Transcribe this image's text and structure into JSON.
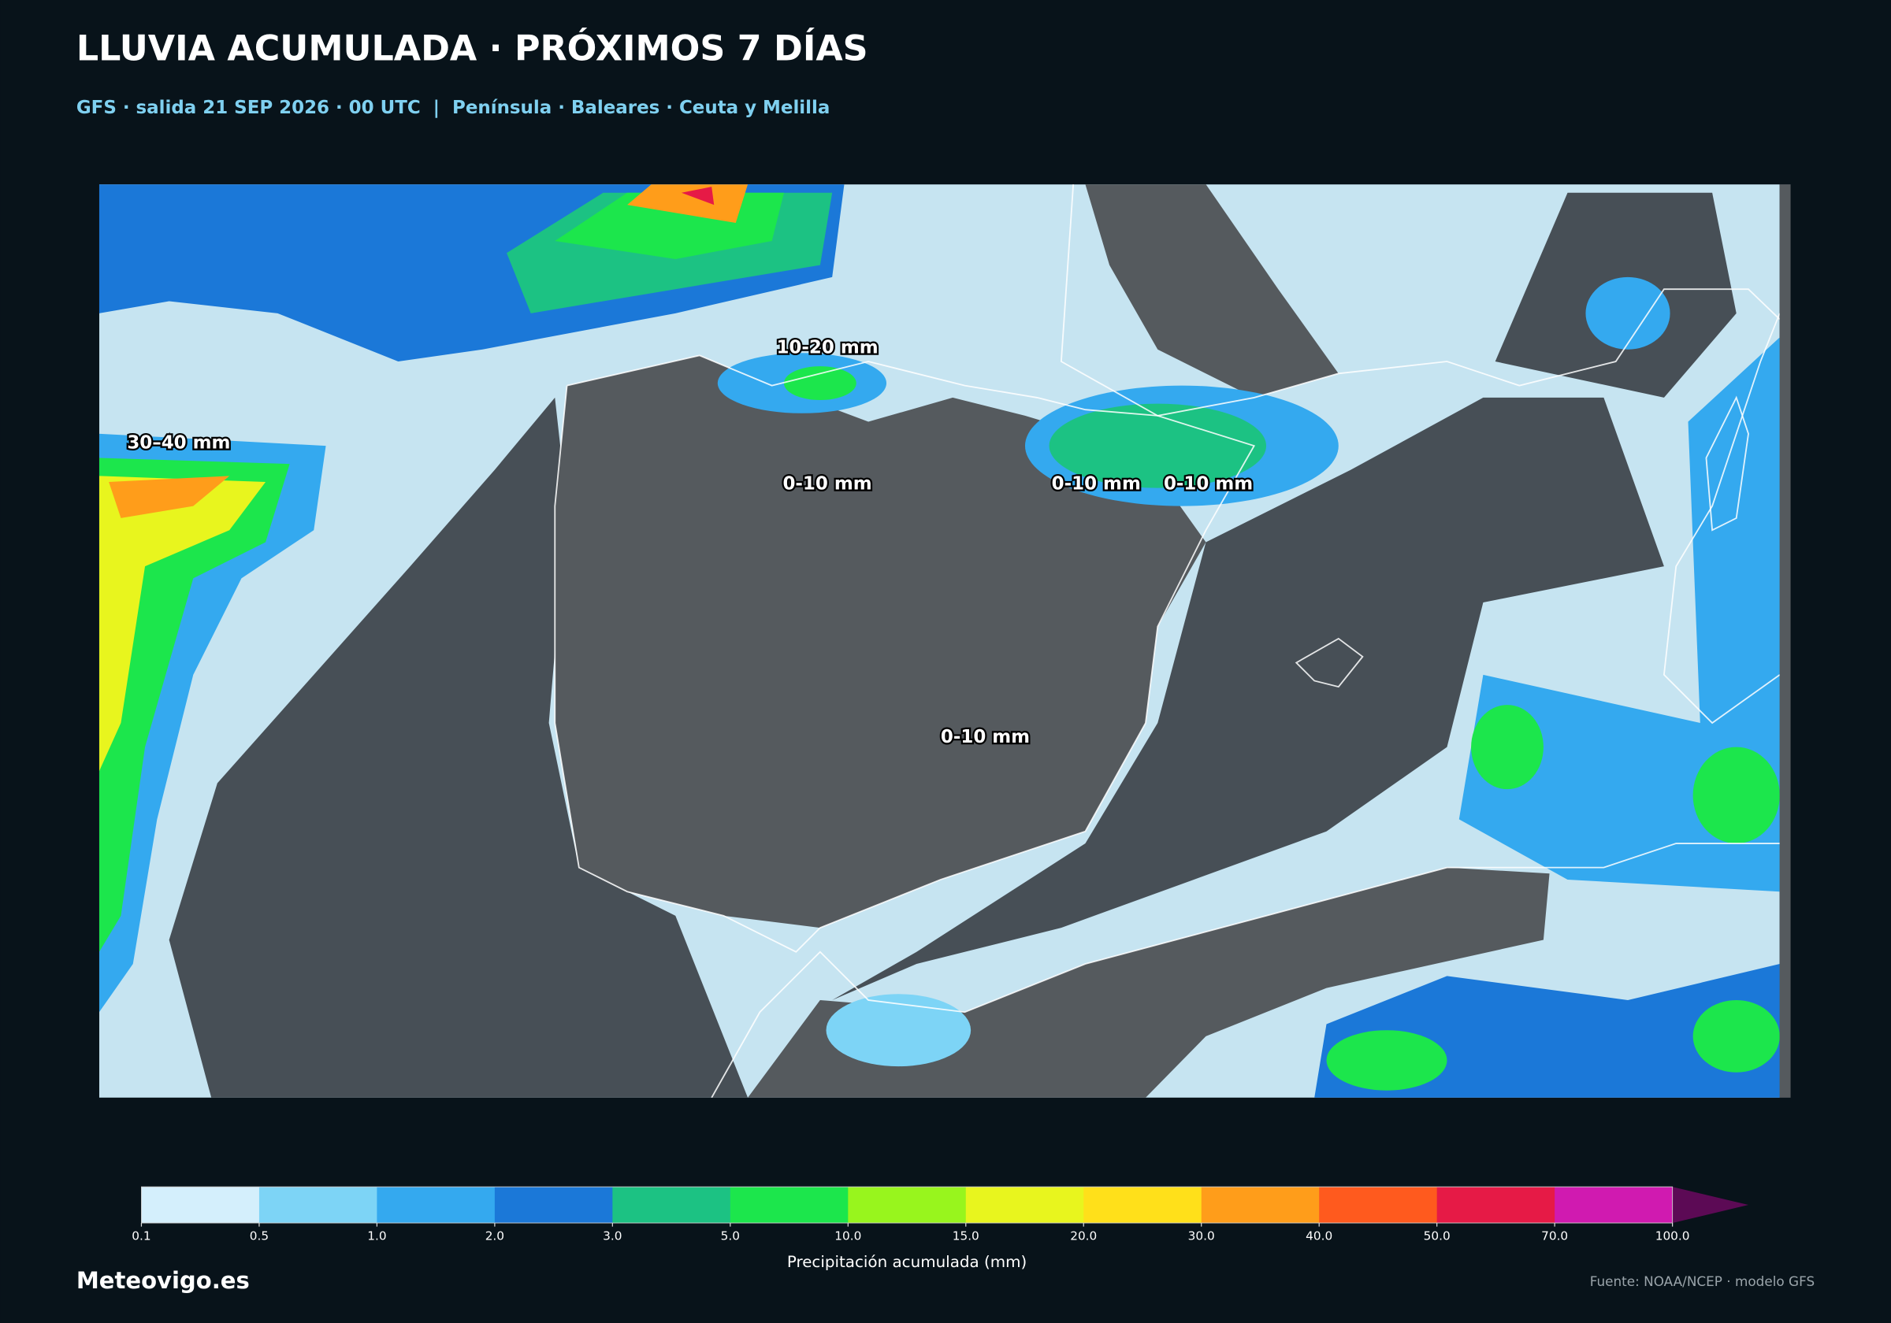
{
  "header": {
    "title": "LLUVIA ACUMULADA · PRÓXIMOS 7 DÍAS",
    "subtitle": "GFS · salida 21 SEP 2026 · 00 UTC  |  Península · Baleares · Ceuta y Melilla"
  },
  "map": {
    "labels": [
      "30–40 mm",
      "10-20 mm",
      "0-10 mm",
      "0-10 mm",
      "0-10 mm",
      "0-10 mm"
    ]
  },
  "colorbar": {
    "ticks": [
      0.1,
      0.5,
      {
        "value": 1,
        "label": "1.0"
      },
      {
        "value": 2,
        "label": "2.0"
      },
      {
        "value": 3,
        "label": "3.0"
      },
      {
        "value": 5,
        "label": "5.0"
      },
      {
        "value": 10,
        "label": "10.0"
      },
      {
        "value": 15,
        "label": "15.0"
      },
      {
        "value": 20,
        "label": "20.0"
      },
      {
        "value": 30,
        "label": "30.0"
      },
      {
        "value": 40,
        "label": "40.0"
      },
      {
        "value": 50,
        "label": "50.0"
      },
      {
        "value": 70,
        "label": "70.0"
      },
      {
        "value": 100,
        "label": "100.0"
      }
    ],
    "colors": [
      "#d4effc",
      "#7dd4f6",
      "#34a9ef",
      "#1b78d8",
      "#1cc283",
      "#1ce64c",
      "#98f51d",
      "#e8f51e",
      "#ffe01a",
      "#ff9d1a",
      "#ff5a1e",
      "#e61a46",
      "#d01ab0"
    ],
    "extend_color": "#5c0a55",
    "label": "Precipitación acumulada (mm)"
  },
  "footer": {
    "brand": "Meteovigo.es",
    "source": "Fuente: NOAA/NCEP · modelo GFS"
  }
}
